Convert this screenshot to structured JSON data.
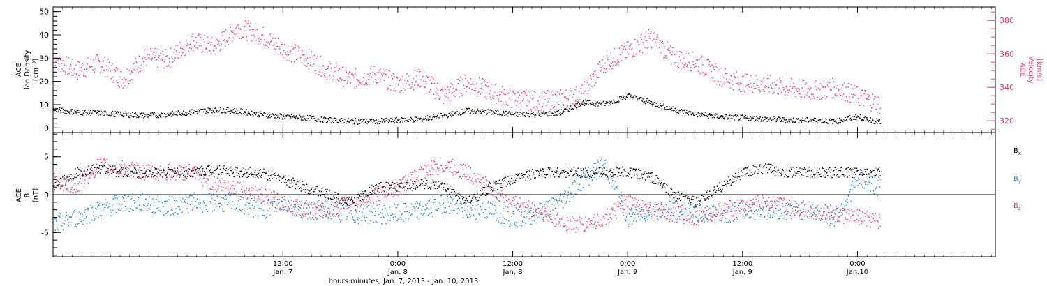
{
  "colors": {
    "axis": "#000000",
    "density": "#000000",
    "velocity": "#e8386a",
    "bx": "#000000",
    "by": "#1f7fd6",
    "bz": "#e8386a"
  },
  "chart_data": [
    {
      "type": "scatter",
      "panel": "top",
      "ylabel_lines": [
        "ACE",
        "Ion Density",
        "[cm⁻³]"
      ],
      "y2label_lines": [
        "ACE",
        "Velocity",
        "[km/s]"
      ],
      "xlim": [
        -0.5,
        3.6
      ],
      "ylim": [
        -2,
        52
      ],
      "y2lim": [
        313,
        388
      ],
      "yticks": [
        0,
        10,
        20,
        30,
        40,
        50
      ],
      "y2ticks": [
        320,
        340,
        360,
        380
      ],
      "series": [
        {
          "name": "",
          "axis": "left",
          "x": [
            -0.5,
            -0.4,
            -0.3,
            -0.2,
            -0.1,
            0.0,
            0.1,
            0.2,
            0.3,
            0.4,
            0.5,
            0.6,
            0.7,
            0.8,
            0.9,
            1.0,
            1.1,
            1.2,
            1.3,
            1.4,
            1.5,
            1.6,
            1.7,
            1.8,
            1.9,
            2.0,
            2.1,
            2.2,
            2.3,
            2.4,
            2.5,
            2.6,
            2.7,
            2.8,
            2.9,
            3.0,
            3.1
          ],
          "values": [
            8,
            7,
            6.5,
            6,
            5.5,
            6,
            7,
            8,
            7.5,
            6,
            5,
            4.5,
            3.5,
            3,
            3,
            3.5,
            4,
            5.5,
            7.5,
            7,
            6,
            6,
            6.5,
            11,
            10.5,
            14,
            11,
            8,
            6,
            5,
            4.5,
            4,
            3.5,
            3.5,
            3,
            5,
            2.5
          ]
        },
        {
          "name": "",
          "axis": "right",
          "x": [
            -0.5,
            -0.4,
            -0.3,
            -0.2,
            -0.1,
            0.0,
            0.1,
            0.2,
            0.3,
            0.4,
            0.5,
            0.6,
            0.7,
            0.8,
            0.9,
            1.0,
            1.1,
            1.2,
            1.3,
            1.4,
            1.5,
            1.6,
            1.7,
            1.8,
            1.9,
            2.0,
            2.1,
            2.2,
            2.3,
            2.4,
            2.5,
            2.6,
            2.7,
            2.8,
            2.9,
            3.0,
            3.1
          ],
          "values": [
            357,
            350,
            355,
            345,
            358,
            357,
            368,
            364,
            376,
            372,
            363,
            358,
            350,
            345,
            348,
            342,
            346,
            335,
            343,
            338,
            333,
            332,
            333,
            336,
            355,
            362,
            370,
            358,
            355,
            347,
            343,
            342,
            340,
            338,
            340,
            335,
            330
          ]
        }
      ]
    },
    {
      "type": "scatter",
      "panel": "bottom",
      "ylabel_lines": [
        "ACE",
        "B",
        "[nT]"
      ],
      "xlim": [
        -0.5,
        3.6
      ],
      "ylim": [
        -8.2,
        8.2
      ],
      "yticks": [
        -5,
        0,
        5
      ],
      "legend_position": "right",
      "series": [
        {
          "name": "Bx",
          "x": [
            -0.5,
            -0.4,
            -0.3,
            -0.2,
            -0.1,
            0.0,
            0.1,
            0.2,
            0.3,
            0.4,
            0.5,
            0.6,
            0.7,
            0.8,
            0.9,
            1.0,
            1.1,
            1.2,
            1.3,
            1.4,
            1.5,
            1.6,
            1.7,
            1.8,
            1.9,
            2.0,
            2.1,
            2.2,
            2.3,
            2.4,
            2.5,
            2.6,
            2.7,
            2.8,
            2.9,
            3.0,
            3.1
          ],
          "values": [
            1,
            3,
            3.5,
            3,
            3,
            3,
            3,
            3.5,
            3,
            3,
            2,
            1,
            0,
            -1,
            1,
            1,
            1.5,
            1,
            -1,
            1,
            2,
            3,
            3,
            3,
            3,
            3,
            2.5,
            0,
            -1,
            1,
            3,
            3.5,
            3,
            3,
            3,
            3,
            3
          ]
        },
        {
          "name": "By",
          "x": [
            -0.5,
            -0.4,
            -0.3,
            -0.2,
            -0.1,
            0.0,
            0.1,
            0.2,
            0.3,
            0.4,
            0.5,
            0.6,
            0.7,
            0.8,
            0.9,
            1.0,
            1.1,
            1.2,
            1.3,
            1.4,
            1.5,
            1.6,
            1.7,
            1.8,
            1.9,
            2.0,
            2.1,
            2.2,
            2.3,
            2.4,
            2.5,
            2.6,
            2.7,
            2.8,
            2.9,
            3.0,
            3.1
          ],
          "values": [
            -4,
            -3,
            -2,
            -1,
            -1,
            -1.5,
            -1,
            -1,
            -1,
            -2,
            -1,
            -2,
            -2,
            -2.5,
            -2.5,
            -2.5,
            -2,
            -1,
            -2,
            -2,
            -3,
            -2.5,
            -1,
            2,
            4,
            -3,
            -2,
            -2,
            -2.5,
            -2.5,
            -2,
            -2,
            -2,
            -2,
            -3,
            2,
            1
          ]
        },
        {
          "name": "Bz",
          "x": [
            -0.5,
            -0.4,
            -0.3,
            -0.2,
            -0.1,
            0.0,
            0.1,
            0.2,
            0.3,
            0.4,
            0.5,
            0.6,
            0.7,
            0.8,
            0.9,
            1.0,
            1.1,
            1.2,
            1.3,
            1.4,
            1.5,
            1.6,
            1.7,
            1.8,
            1.9,
            2.0,
            2.1,
            2.2,
            2.3,
            2.4,
            2.5,
            2.6,
            2.7,
            2.8,
            2.9,
            3.0,
            3.1
          ],
          "values": [
            2,
            1,
            4,
            3.5,
            3,
            3,
            3,
            1.5,
            1,
            0,
            -1,
            -2,
            -2,
            -1,
            0,
            1,
            3,
            4,
            3,
            1,
            -1,
            -2,
            -3.5,
            -4,
            -3,
            -1,
            -2,
            -2.5,
            -3,
            -2,
            -1.5,
            -1,
            -1.5,
            -2,
            -2.5,
            -3,
            -3.5
          ]
        }
      ]
    }
  ],
  "x_axis": {
    "ticks": [
      {
        "x": 0.5,
        "time": "12:00",
        "date": "Jan. 7"
      },
      {
        "x": 1.0,
        "time": "0:00",
        "date": "Jan. 8"
      },
      {
        "x": 1.5,
        "time": "12:00",
        "date": "Jan. 8"
      },
      {
        "x": 2.0,
        "time": "0:00",
        "date": "Jan. 9"
      },
      {
        "x": 2.5,
        "time": "12:00",
        "date": "Jan. 9"
      },
      {
        "x": 3.0,
        "time": "0:00",
        "date": "Jan.10"
      }
    ],
    "title": "hours:minutes, Jan.  7, 2013 - Jan. 10, 2013"
  },
  "legend": {
    "bx_base": "B",
    "bx_sub": "x",
    "by_base": "B",
    "by_sub": "y",
    "bz_base": "B",
    "bz_sub": "z"
  }
}
